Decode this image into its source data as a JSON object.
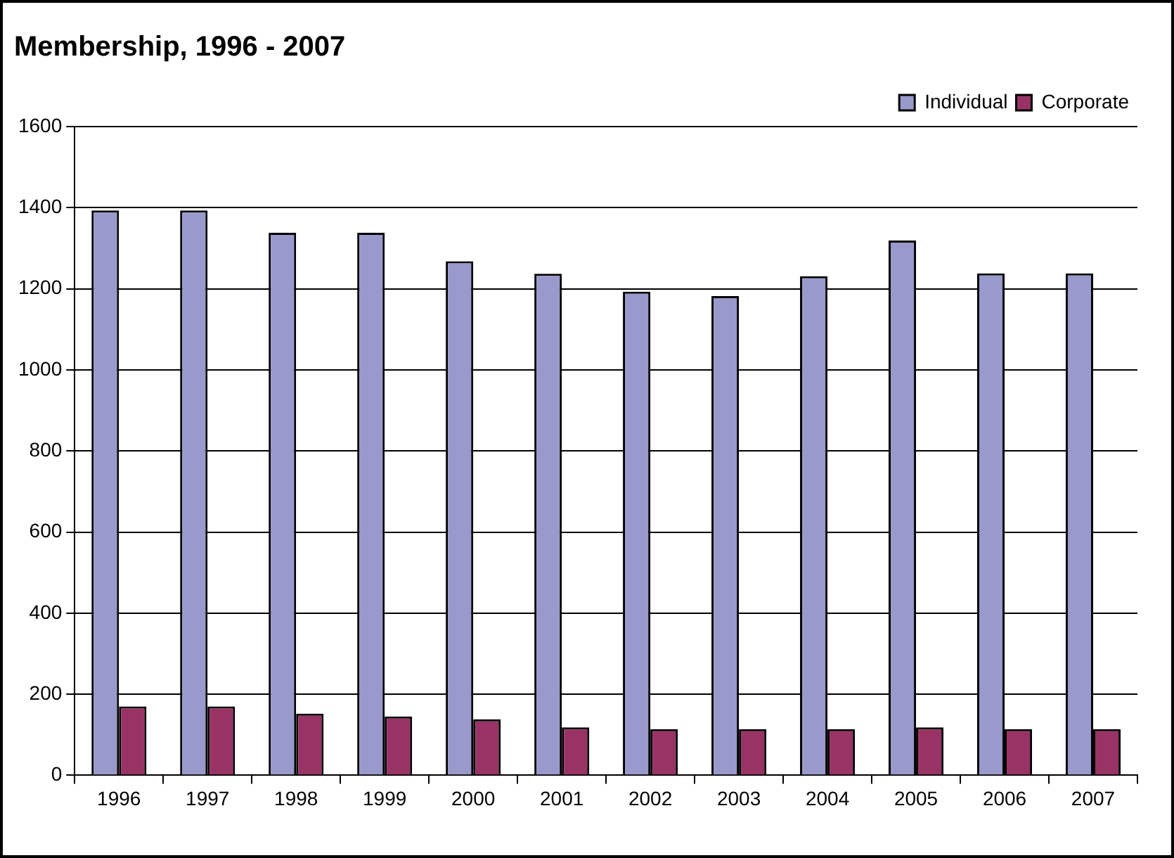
{
  "chart_data": {
    "type": "bar",
    "title": "Membership, 1996 - 2007",
    "categories": [
      "1996",
      "1997",
      "1998",
      "1999",
      "2000",
      "2001",
      "2002",
      "2003",
      "2004",
      "2005",
      "2006",
      "2007"
    ],
    "series": [
      {
        "name": "Individual",
        "color": "#9999cc",
        "values": [
          1393,
          1393,
          1338,
          1338,
          1268,
          1237,
          1193,
          1182,
          1231,
          1319,
          1238,
          1238
        ]
      },
      {
        "name": "Corporate",
        "color": "#993366",
        "values": [
          170,
          170,
          152,
          145,
          138,
          118,
          114,
          114,
          114,
          118,
          114,
          114
        ]
      }
    ],
    "ylim": [
      0,
      1600
    ],
    "yticks": [
      0,
      200,
      400,
      600,
      800,
      1000,
      1200,
      1400,
      1600
    ],
    "grid": "y",
    "legend": "top right"
  }
}
